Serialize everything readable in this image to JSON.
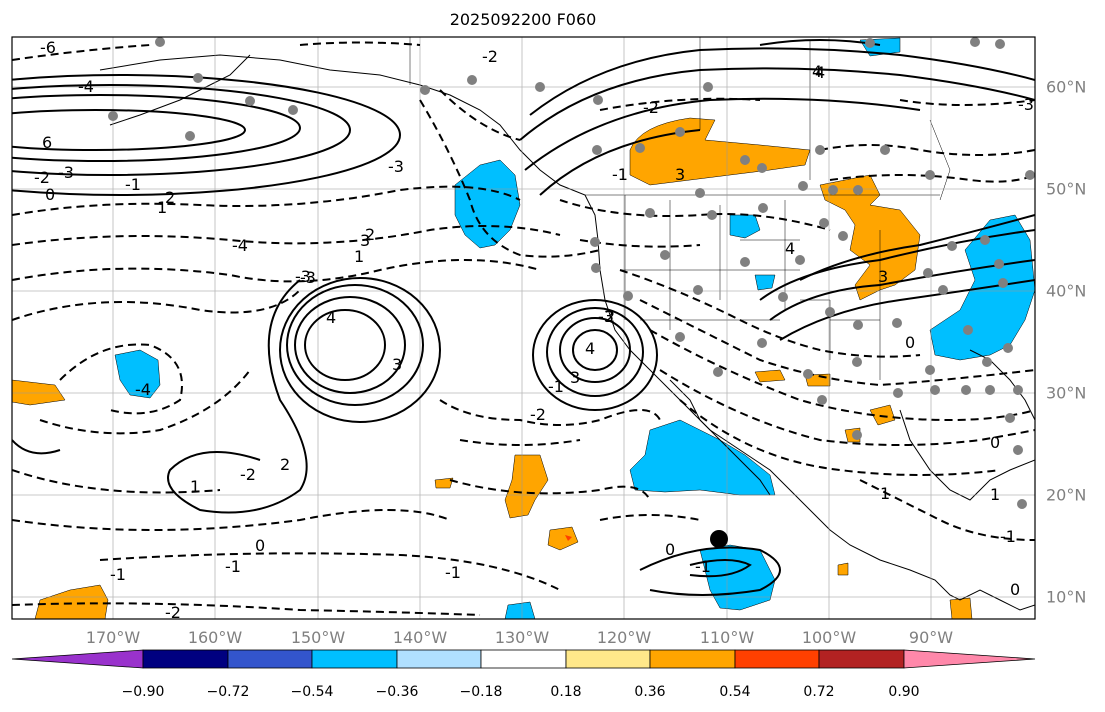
{
  "title": "2025092200 F060",
  "map": {
    "lon_labels": [
      "170°W",
      "160°W",
      "150°W",
      "140°W",
      "130°W",
      "120°W",
      "110°W",
      "100°W",
      "90°W"
    ],
    "lat_labels": [
      "60°N",
      "50°N",
      "40°N",
      "30°N",
      "20°N",
      "10°N"
    ],
    "contour_labels": [
      "-6",
      "-4",
      "6",
      "-3",
      "-2",
      "-1",
      "0",
      "1",
      "2",
      "3",
      "4",
      "-4",
      "4",
      "3",
      "-3",
      "2",
      "1",
      "-1",
      "-4",
      "-2",
      "-3",
      "-3",
      "2",
      "1",
      "3",
      "-3",
      "-2",
      "-1",
      "0",
      "-1",
      "-2",
      "-1",
      "3",
      "4",
      "-2",
      "-3",
      "3",
      "4",
      "0",
      "1",
      "-1",
      "0",
      "1",
      "0",
      "-1",
      "-2",
      "0",
      "-1",
      "4",
      "2"
    ],
    "marker": "storm-center-dot"
  },
  "colorbar": {
    "tick_labels": [
      "−0.90",
      "−0.72",
      "−0.54",
      "−0.36",
      "−0.18",
      "0.18",
      "0.36",
      "0.54",
      "0.72",
      "0.90"
    ],
    "colors": [
      "#9932cc",
      "#000080",
      "#3355cc",
      "#00bfff",
      "#b0e0ff",
      "#ffffff",
      "#ffe88a",
      "#ffa500",
      "#ff4000",
      "#b22222",
      "#ff88aa"
    ]
  }
}
